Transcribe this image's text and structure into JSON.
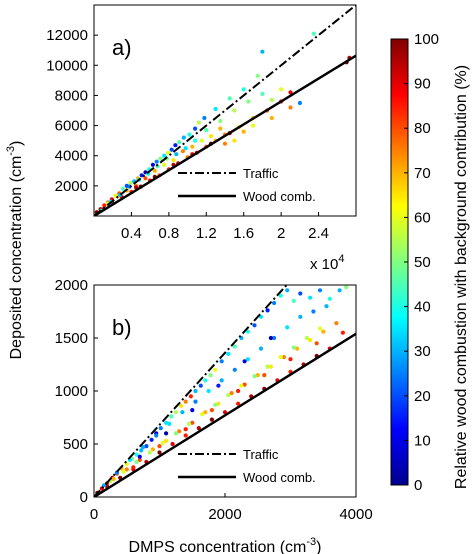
{
  "chart_data": [
    {
      "type": "scatter",
      "panel_label": "a)",
      "xlim": [
        0,
        28000
      ],
      "ylim": [
        0,
        14000
      ],
      "xticks": [
        4000,
        8000,
        12000,
        16000,
        20000,
        24000
      ],
      "xtick_labels": [
        "0.4",
        "0.8",
        "1.2",
        "1.6",
        "2",
        "2.4"
      ],
      "yticks": [
        2000,
        4000,
        6000,
        8000,
        10000,
        12000
      ],
      "ytick_labels": [
        "2000",
        "4000",
        "6000",
        "8000",
        "10000",
        "12000"
      ],
      "x_multiplier_label": "x 10",
      "x_multiplier_exponent": "4",
      "lines": [
        {
          "name": "Traffic",
          "style": "dashdot",
          "slope": 0.5
        },
        {
          "name": "Wood comb.",
          "style": "solid",
          "slope": 0.38
        }
      ],
      "legend": [
        "Traffic",
        "Wood comb."
      ],
      "legend_position": "lower-right",
      "points": [
        [
          300,
          250,
          100
        ],
        [
          700,
          450,
          95
        ],
        [
          1100,
          700,
          85
        ],
        [
          1500,
          900,
          75
        ],
        [
          1900,
          1100,
          90
        ],
        [
          2300,
          1350,
          60
        ],
        [
          2700,
          1500,
          80
        ],
        [
          3100,
          1800,
          45
        ],
        [
          3500,
          2000,
          20
        ],
        [
          3900,
          2200,
          55
        ],
        [
          4300,
          2300,
          30
        ],
        [
          4700,
          2500,
          70
        ],
        [
          5100,
          2700,
          15
        ],
        [
          5500,
          2900,
          5
        ],
        [
          5900,
          3100,
          40
        ],
        [
          6300,
          3400,
          10
        ],
        [
          6700,
          3600,
          25
        ],
        [
          7100,
          3800,
          50
        ],
        [
          7500,
          4000,
          35
        ],
        [
          7900,
          4200,
          60
        ],
        [
          8300,
          4400,
          20
        ],
        [
          8700,
          4700,
          15
        ],
        [
          9100,
          4900,
          45
        ],
        [
          9600,
          5200,
          30
        ],
        [
          10200,
          5400,
          40
        ],
        [
          10800,
          5800,
          20
        ],
        [
          11200,
          6200,
          55
        ],
        [
          11800,
          6500,
          25
        ],
        [
          13000,
          7100,
          35
        ],
        [
          14500,
          7800,
          45
        ],
        [
          16000,
          8400,
          40
        ],
        [
          17500,
          9300,
          50
        ],
        [
          18000,
          10900,
          30
        ],
        [
          19000,
          7700,
          55
        ],
        [
          20000,
          8400,
          60
        ],
        [
          22000,
          7500,
          25
        ],
        [
          23500,
          12100,
          45
        ],
        [
          27000,
          10200,
          100
        ],
        [
          27300,
          10500,
          95
        ],
        [
          1000,
          450,
          100
        ],
        [
          2000,
          850,
          95
        ],
        [
          3000,
          1250,
          90
        ],
        [
          4000,
          1600,
          85
        ],
        [
          5000,
          1950,
          100
        ],
        [
          6000,
          2350,
          90
        ],
        [
          7000,
          2700,
          80
        ],
        [
          8000,
          3100,
          85
        ],
        [
          9000,
          3500,
          95
        ],
        [
          10000,
          3900,
          75
        ],
        [
          11000,
          4200,
          90
        ],
        [
          12000,
          4600,
          80
        ],
        [
          13000,
          5000,
          70
        ],
        [
          14000,
          5400,
          75
        ],
        [
          15500,
          5900,
          65
        ],
        [
          17000,
          6500,
          70
        ],
        [
          18500,
          7000,
          80
        ],
        [
          20000,
          7600,
          85
        ],
        [
          21000,
          8200,
          90
        ],
        [
          1500,
          800,
          60
        ],
        [
          2500,
          1300,
          65
        ],
        [
          3500,
          1700,
          70
        ],
        [
          4500,
          2000,
          75
        ],
        [
          5500,
          2500,
          80
        ],
        [
          6500,
          3000,
          70
        ],
        [
          7500,
          3400,
          60
        ],
        [
          8500,
          3700,
          65
        ],
        [
          9500,
          4300,
          75
        ],
        [
          10500,
          4600,
          70
        ],
        [
          11500,
          5000,
          60
        ],
        [
          12500,
          5300,
          65
        ],
        [
          13500,
          5800,
          70
        ],
        [
          14000,
          4800,
          75
        ],
        [
          15000,
          5000,
          65
        ],
        [
          16000,
          5600,
          70
        ],
        [
          17000,
          6000,
          60
        ],
        [
          19000,
          6500,
          70
        ],
        [
          21000,
          7200,
          75
        ],
        [
          800,
          350,
          40
        ],
        [
          1800,
          950,
          35
        ],
        [
          2800,
          1400,
          30
        ],
        [
          3800,
          1950,
          25
        ],
        [
          4800,
          2400,
          35
        ],
        [
          5800,
          2800,
          40
        ],
        [
          6800,
          3300,
          45
        ],
        [
          7800,
          3800,
          50
        ],
        [
          8800,
          4100,
          30
        ],
        [
          9800,
          4500,
          35
        ],
        [
          10800,
          5000,
          40
        ],
        [
          12000,
          5700,
          45
        ],
        [
          13500,
          6300,
          50
        ],
        [
          15000,
          7000,
          55
        ],
        [
          16500,
          7600,
          50
        ],
        [
          18000,
          8100,
          45
        ],
        [
          4500,
          1900,
          95
        ],
        [
          6500,
          2600,
          100
        ],
        [
          8500,
          3400,
          95
        ],
        [
          10500,
          4100,
          90
        ],
        [
          12500,
          4800,
          100
        ],
        [
          14500,
          5500,
          95
        ]
      ]
    },
    {
      "type": "scatter",
      "panel_label": "b)",
      "xlim": [
        0,
        4000
      ],
      "ylim": [
        0,
        2000
      ],
      "xticks": [
        0,
        2000,
        4000
      ],
      "xtick_labels": [
        "0",
        "2000",
        "4000"
      ],
      "yticks": [
        0,
        500,
        1000,
        1500,
        2000
      ],
      "ytick_labels": [
        "0",
        "500",
        "1000",
        "1500",
        "2000"
      ],
      "xlabel": "DMPS concentration (cm",
      "xlabel_sup": "-3",
      "xlabel_end": ")",
      "lines": [
        {
          "name": "Traffic",
          "style": "dashdot",
          "slope": 0.68
        },
        {
          "name": "Wood comb.",
          "style": "solid",
          "slope": 0.385
        }
      ],
      "legend": [
        "Traffic",
        "Wood comb."
      ],
      "legend_position": "lower-right",
      "points": [
        [
          50,
          40,
          100
        ],
        [
          120,
          80,
          90
        ],
        [
          200,
          130,
          85
        ],
        [
          280,
          180,
          95
        ],
        [
          350,
          220,
          80
        ],
        [
          420,
          270,
          70
        ],
        [
          500,
          310,
          60
        ],
        [
          580,
          360,
          50
        ],
        [
          650,
          400,
          40
        ],
        [
          720,
          440,
          30
        ],
        [
          800,
          480,
          20
        ],
        [
          880,
          540,
          15
        ],
        [
          950,
          600,
          10
        ],
        [
          1020,
          650,
          25
        ],
        [
          1100,
          700,
          35
        ],
        [
          1180,
          760,
          45
        ],
        [
          1250,
          800,
          55
        ],
        [
          1330,
          860,
          65
        ],
        [
          1400,
          900,
          75
        ],
        [
          1480,
          950,
          85
        ],
        [
          1550,
          1000,
          30
        ],
        [
          1630,
          1050,
          20
        ],
        [
          1700,
          1100,
          40
        ],
        [
          1780,
          1150,
          50
        ],
        [
          1850,
          1200,
          60
        ],
        [
          1950,
          1280,
          25
        ],
        [
          2050,
          1350,
          35
        ],
        [
          2150,
          1420,
          45
        ],
        [
          2250,
          1500,
          30
        ],
        [
          2350,
          1560,
          40
        ],
        [
          2450,
          1620,
          20
        ],
        [
          2550,
          1700,
          35
        ],
        [
          2650,
          1760,
          15
        ],
        [
          2750,
          1830,
          25
        ],
        [
          2850,
          1900,
          40
        ],
        [
          2950,
          1950,
          30
        ],
        [
          3050,
          1850,
          45
        ],
        [
          3150,
          1920,
          20
        ],
        [
          3300,
          1880,
          35
        ],
        [
          3450,
          1950,
          25
        ],
        [
          3600,
          1870,
          40
        ],
        [
          3750,
          1950,
          30
        ],
        [
          3850,
          1980,
          50
        ],
        [
          200,
          100,
          95
        ],
        [
          400,
          180,
          100
        ],
        [
          600,
          260,
          90
        ],
        [
          800,
          330,
          95
        ],
        [
          1000,
          420,
          100
        ],
        [
          1200,
          500,
          90
        ],
        [
          1400,
          580,
          85
        ],
        [
          1600,
          650,
          95
        ],
        [
          1800,
          730,
          100
        ],
        [
          2000,
          800,
          90
        ],
        [
          2200,
          880,
          85
        ],
        [
          2400,
          950,
          95
        ],
        [
          2600,
          1020,
          100
        ],
        [
          2800,
          1100,
          90
        ],
        [
          3000,
          1180,
          85
        ],
        [
          3200,
          1250,
          95
        ],
        [
          3400,
          1330,
          100
        ],
        [
          3600,
          1400,
          90
        ],
        [
          300,
          170,
          70
        ],
        [
          500,
          260,
          75
        ],
        [
          700,
          350,
          80
        ],
        [
          900,
          450,
          70
        ],
        [
          1100,
          530,
          65
        ],
        [
          1300,
          620,
          75
        ],
        [
          1500,
          700,
          80
        ],
        [
          1700,
          800,
          70
        ],
        [
          1900,
          880,
          65
        ],
        [
          2100,
          980,
          75
        ],
        [
          2300,
          1060,
          80
        ],
        [
          2500,
          1150,
          70
        ],
        [
          2700,
          1230,
          65
        ],
        [
          2900,
          1320,
          75
        ],
        [
          3100,
          1400,
          70
        ],
        [
          3300,
          1480,
          65
        ],
        [
          3500,
          1560,
          70
        ],
        [
          3700,
          1640,
          75
        ],
        [
          250,
          150,
          55
        ],
        [
          450,
          240,
          60
        ],
        [
          650,
          330,
          50
        ],
        [
          850,
          420,
          55
        ],
        [
          1050,
          510,
          60
        ],
        [
          1250,
          600,
          50
        ],
        [
          1450,
          690,
          55
        ],
        [
          1650,
          780,
          60
        ],
        [
          1850,
          870,
          50
        ],
        [
          2050,
          960,
          55
        ],
        [
          2250,
          1050,
          60
        ],
        [
          2450,
          1140,
          50
        ],
        [
          2650,
          1230,
          55
        ],
        [
          2850,
          1320,
          60
        ],
        [
          3050,
          1410,
          50
        ],
        [
          3250,
          1500,
          55
        ],
        [
          3450,
          1590,
          60
        ],
        [
          150,
          110,
          30
        ],
        [
          350,
          230,
          25
        ],
        [
          550,
          350,
          35
        ],
        [
          750,
          470,
          30
        ],
        [
          950,
          580,
          25
        ],
        [
          1150,
          690,
          35
        ],
        [
          1350,
          800,
          30
        ],
        [
          1550,
          900,
          25
        ],
        [
          1750,
          1000,
          35
        ],
        [
          1950,
          1100,
          30
        ],
        [
          2150,
          1200,
          25
        ],
        [
          2350,
          1300,
          35
        ],
        [
          2550,
          1400,
          30
        ],
        [
          2750,
          1500,
          25
        ],
        [
          2950,
          1600,
          35
        ],
        [
          3150,
          1700,
          30
        ],
        [
          3350,
          1750,
          25
        ],
        [
          3550,
          1800,
          30
        ],
        [
          600,
          280,
          85
        ],
        [
          1000,
          480,
          80
        ],
        [
          1400,
          640,
          85
        ],
        [
          1800,
          820,
          80
        ],
        [
          2200,
          1000,
          85
        ],
        [
          2600,
          1150,
          80
        ],
        [
          3000,
          1300,
          85
        ],
        [
          3400,
          1450,
          80
        ],
        [
          3800,
          1550,
          85
        ],
        [
          700,
          380,
          10
        ],
        [
          1100,
          600,
          5
        ],
        [
          1500,
          820,
          10
        ],
        [
          1900,
          1050,
          15
        ],
        [
          2300,
          1280,
          10
        ],
        [
          2700,
          1500,
          5
        ]
      ]
    }
  ],
  "shared_ylabel": "Deposited concentration (cm",
  "shared_ylabel_sup": "-3",
  "shared_ylabel_end": ")",
  "colorbar": {
    "label": "Relative wood combustion with background contribution (%)",
    "range": [
      0,
      100
    ],
    "ticks": [
      0,
      10,
      20,
      30,
      40,
      50,
      60,
      70,
      80,
      90,
      100
    ],
    "tick_labels": [
      "0",
      "10",
      "20",
      "30",
      "40",
      "50",
      "60",
      "70",
      "80",
      "90",
      "100"
    ],
    "colormap": "jet"
  }
}
